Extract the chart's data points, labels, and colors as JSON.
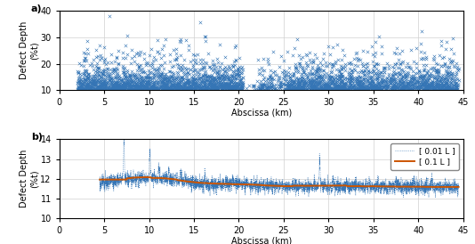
{
  "xlim": [
    0,
    45
  ],
  "panel_a": {
    "ylim": [
      10,
      40
    ],
    "yticks": [
      10,
      20,
      30,
      40
    ],
    "ylabel": "Defect Depth\n(%t)",
    "xlabel": "Abscissa (km)",
    "marker_color": "#3575b5",
    "markersize": 2.5,
    "label": "a)"
  },
  "panel_b": {
    "ylim": [
      10,
      14
    ],
    "yticks": [
      10,
      11,
      12,
      13,
      14
    ],
    "ylabel": "Defect Depth\n(%t)",
    "xlabel": "Abscissa (km)",
    "line_color_fine": "#3575b5",
    "line_color_smooth": "#cc5500",
    "label": "b)",
    "legend_fine": "[ 0.01 L ]",
    "legend_smooth": "[ 0.1 L ]"
  },
  "xticks": [
    0,
    5,
    10,
    15,
    20,
    25,
    30,
    35,
    40,
    45
  ],
  "grid_color": "#d0d0d0",
  "background": "#ffffff"
}
